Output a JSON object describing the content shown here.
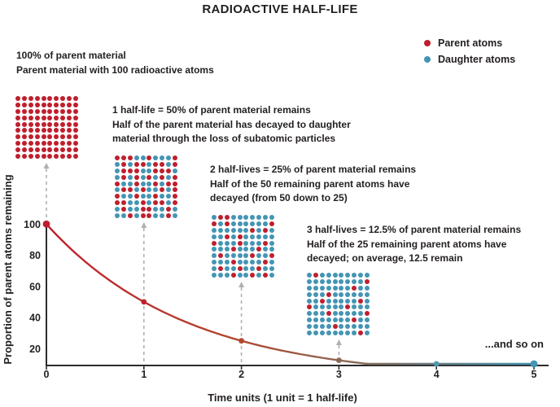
{
  "title": "RADIOACTIVE HALF-LIFE",
  "legend": {
    "items": [
      {
        "label": "Parent atoms",
        "color": "#bf1f2d"
      },
      {
        "label": "Daughter atoms",
        "color": "#4495b4"
      }
    ]
  },
  "colors": {
    "parent": "#bf1f2d",
    "daughter": "#4495b4",
    "text": "#231f20",
    "axis": "#2b2b2b",
    "dashed": "#b0b0b0",
    "curve_gradient": [
      "#bf1f2d",
      "#b4462f",
      "#8a6a55",
      "#4495b4"
    ],
    "point_colors": [
      "#bf1f2d",
      "#bf1f2d",
      "#b4462f",
      "#8a6a55",
      "#4e97b2",
      "#4495b4"
    ]
  },
  "annotations": [
    {
      "heading": "100% of parent material",
      "lines": [
        "Parent material with 100 radioactive atoms"
      ]
    },
    {
      "heading": "1 half-life = 50% of parent material remains",
      "lines": [
        "Half of the parent material has decayed to daughter",
        "material through the loss of subatomic particles"
      ]
    },
    {
      "heading": "2 half-lives = 25% of parent material remains",
      "lines": [
        "Half of the 50 remaining parent atoms have",
        "decayed (from 50 down to 25)"
      ]
    },
    {
      "heading": "3 half-lives = 12.5% of parent material remains",
      "lines": [
        "Half of the 25 remaining parent atoms have",
        "decayed; on average, 12.5 remain"
      ]
    }
  ],
  "grids": [
    {
      "name": "grid-0-half-lives",
      "red_count": 100,
      "pattern": [
        "RRRRRRRRRR",
        "RRRRRRRRRR",
        "RRRRRRRRRR",
        "RRRRRRRRRR",
        "RRRRRRRRRR",
        "RRRRRRRRRR",
        "RRRRRRRRRR",
        "RRRRRRRRRR",
        "RRRRRRRRRR",
        "RRRRRRRRRR"
      ]
    },
    {
      "name": "grid-1-half-life",
      "red_count": 50,
      "pattern": [
        "RRRBBRBBBR",
        "BRBRRBRRBR",
        "BRRRBBRRRB",
        "BRBRBRBRBR",
        "RBBRBBRBRR",
        "BRRBRBBRBR",
        "RBBRBBRBBR",
        "RRBBRBRRBR",
        "BRBBRRBBRB",
        "BBRBRRBBRB"
      ]
    },
    {
      "name": "grid-2-half-lives",
      "red_count": 25,
      "pattern": [
        "BRRBBBBBBB",
        "RBRBBBBBBR",
        "BBBBBBRBRB",
        "BBRBRBBBBB",
        "RBBBRBBBRB",
        "BBBRBBBRBB",
        "BRBBBBRBBR",
        "BBBRBBBBRB",
        "BRBBRBBRBB",
        "BBBRBBRBRB"
      ]
    },
    {
      "name": "grid-3-half-lives",
      "red_count": 13,
      "pattern": [
        "BRBBBBBBBB",
        "BBBBBBBBBR",
        "BBBBBBBRBB",
        "BBBRBBBBBB",
        "BBRBBBBBRB",
        "RBBBBBRBBB",
        "BBBRBBBBBR",
        "BBBBBBBRBB",
        "BBBBRBBBBB",
        "BBBBBBBBRB"
      ]
    }
  ],
  "and_so_on": "...and so on",
  "chart_data": {
    "type": "line",
    "series": [
      {
        "name": "Parent atoms remaining",
        "x": [
          0,
          1,
          2,
          3,
          4,
          5
        ],
        "values": [
          100,
          50,
          25,
          12.5,
          6.25,
          3.125
        ]
      }
    ],
    "title": "",
    "xlabel": "Time units (1 unit = 1 half-life)",
    "ylabel": "Proportion of parent atoms remaining",
    "x_ticks": [
      "0",
      "1",
      "2",
      "3",
      "4",
      "5"
    ],
    "y_ticks": [
      "20",
      "40",
      "60",
      "80",
      "100"
    ],
    "y_tick_values": [
      20,
      40,
      60,
      80,
      100
    ],
    "xlim": [
      0,
      5
    ],
    "ylim": [
      0,
      100
    ],
    "grid": false,
    "legend_position": "top-right",
    "annotation": "...and so on",
    "curve_style": "color fades from parent red to daughter blue as decay progresses"
  }
}
